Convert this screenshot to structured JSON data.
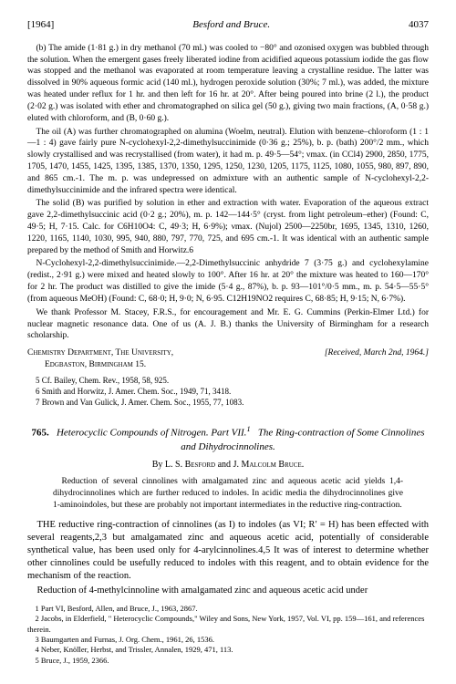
{
  "header": {
    "year": "[1964]",
    "authors": "Besford and Bruce.",
    "page": "4037"
  },
  "para_b": "(b) The amide (1·81 g.) in dry methanol (70 ml.) was cooled to −80° and ozonised oxygen was bubbled through the solution. When the emergent gases freely liberated iodine from acidified aqueous potassium iodide the gas flow was stopped and the methanol was evaporated at room temperature leaving a crystalline residue. The latter was dissolved in 90% aqueous formic acid (140 ml.), hydrogen peroxide solution (30%; 7 ml.), was added, the mixture was heated under reflux for 1 hr. and then left for 16 hr. at 20°. After being poured into brine (2 l.), the product (2·02 g.) was isolated with ether and chromatographed on silica gel (50 g.), giving two main fractions, (A, 0·58 g.) eluted with chloroform, and (B, 0·60 g.).",
  "para_oil": "The oil (A) was further chromatographed on alumina (Woelm, neutral). Elution with benzene–chloroform (1 : 1—1 : 4) gave fairly pure N-cyclohexyl-2,2-dimethylsuccinimide (0·36 g.; 25%), b. p. (bath) 200°/2 mm., which slowly crystallised and was recrystallised (from water), it had m. p. 49·5—54°; νmax. (in CCl4) 2900, 2850, 1775, 1705, 1470, 1455, 1425, 1395, 1385, 1370, 1350, 1295, 1250, 1230, 1205, 1175, 1125, 1080, 1055, 980, 897, 890, and 865 cm.-1. The m. p. was undepressed on admixture with an authentic sample of N-cyclohexyl-2,2-dimethylsuccinimide and the infrared spectra were identical.",
  "para_solid": "The solid (B) was purified by solution in ether and extraction with water. Evaporation of the aqueous extract gave 2,2-dimethylsuccinic acid (0·2 g.; 20%), m. p. 142—144·5° (cryst. from light petroleum–ether) (Found: C, 49·5; H, 7·15. Calc. for C6H10O4: C, 49·3; H, 6·9%); νmax. (Nujol) 2500—2250br, 1695, 1345, 1310, 1260, 1220, 1165, 1140, 1030, 995, 940, 880, 797, 770, 725, and 695 cm.-1. It was identical with an authentic sample prepared by the method of Smith and Horwitz.6",
  "para_cyclo": "N-Cyclohexyl-2,2-dimethylsuccinimide.—2,2-Dimethylsuccinic anhydride 7 (3·75 g.) and cyclohexylamine (redist., 2·91 g.) were mixed and heated slowly to 100°. After 16 hr. at 20° the mixture was heated to 160—170° for 2 hr. The product was distilled to give the imide (5·4 g., 87%), b. p. 93—101°/0·5 mm., m. p. 54·5—55·5° (from aqueous MeOH) (Found: C, 68·0; H, 9·0; N, 6·95. C12H19NO2 requires C, 68·85; H, 9·15; N, 6·7%).",
  "para_thanks": "We thank Professor M. Stacey, F.R.S., for encouragement and Mr. E. G. Cummins (Perkin-Elmer Ltd.) for nuclear magnetic resonance data. One of us (A. J. B.) thanks the University of Birmingham for a research scholarship.",
  "dept": {
    "line1": "Chemistry Department, The University,",
    "line2": "Edgbaston, Birmingham 15.",
    "received": "[Received, March 2nd, 1964.]"
  },
  "refs_a": {
    "r5": "5 Cf. Bailey, Chem. Rev., 1958, 58, 925.",
    "r6": "6 Smith and Horwitz, J. Amer. Chem. Soc., 1949, 71, 3418.",
    "r7": "7 Brown and Van Gulick, J. Amer. Chem. Soc., 1955, 77, 1083."
  },
  "article": {
    "num": "765.",
    "title_l1": "Heterocyclic Compounds of Nitrogen. Part VII.",
    "title_sup": "1",
    "title_l2": "The Ring-contraction of Some Cinnolines and Dihydrocinnolines.",
    "by_pre": "By ",
    "by_sc1": "L. S. Besford",
    "by_mid": " and ",
    "by_sc2": "J. Malcolm Bruce."
  },
  "abstract_text": "Reduction of several cinnolines with amalgamated zinc and aqueous acetic acid yields 1,4-dihydrocinnolines which are further reduced to indoles. In acidic media the dihydrocinnolines give 1-aminoindoles, but these are probably not important intermediates in the reductive ring-contraction.",
  "body_p1": "THE reductive ring-contraction of cinnolines (as I) to indoles (as VI; R′ = H) has been effected with several reagents,2,3 but amalgamated zinc and aqueous acetic acid, potentially of considerable synthetical value, has been used only for 4-arylcinnolines.4,5 It was of interest to determine whether other cinnolines could be usefully reduced to indoles with this reagent, and to obtain evidence for the mechanism of the reaction.",
  "body_p2": "Reduction of 4-methylcinnoline with amalgamated zinc and aqueous acetic acid under",
  "footnotes": {
    "f1": "1 Part VI, Besford, Allen, and Bruce, J., 1963, 2867.",
    "f2": "2 Jacobs, in Elderfield, \" Heterocyclic Compounds,\" Wiley and Sons, New York, 1957, Vol. VI, pp. 159—161, and references therein.",
    "f3": "3 Baumgarten and Furnas, J. Org. Chem., 1961, 26, 1536.",
    "f4": "4 Neber, Knöller, Herbst, and Trissler, Annalen, 1929, 471, 113.",
    "f5": "5 Bruce, J., 1959, 2366."
  }
}
